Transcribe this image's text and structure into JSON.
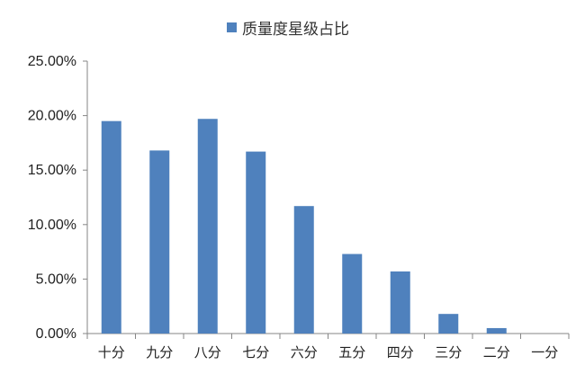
{
  "chart_data": {
    "type": "bar",
    "categories": [
      "十分",
      "九分",
      "八分",
      "七分",
      "六分",
      "五分",
      "四分",
      "三分",
      "二分",
      "一分"
    ],
    "series": [
      {
        "name": "质量度星级占比",
        "values": [
          19.5,
          16.8,
          19.7,
          16.7,
          11.7,
          7.3,
          5.7,
          1.8,
          0.5,
          0.0
        ],
        "color": "#4f81bd"
      }
    ],
    "ylim": [
      0,
      25
    ],
    "yticks": [
      "0.00%",
      "5.00%",
      "10.00%",
      "15.00%",
      "20.00%",
      "25.00%"
    ],
    "ytick_values": [
      0,
      5,
      10,
      15,
      20,
      25
    ],
    "grid": false,
    "legend_position": "top-center",
    "axis_color": "#868686"
  }
}
